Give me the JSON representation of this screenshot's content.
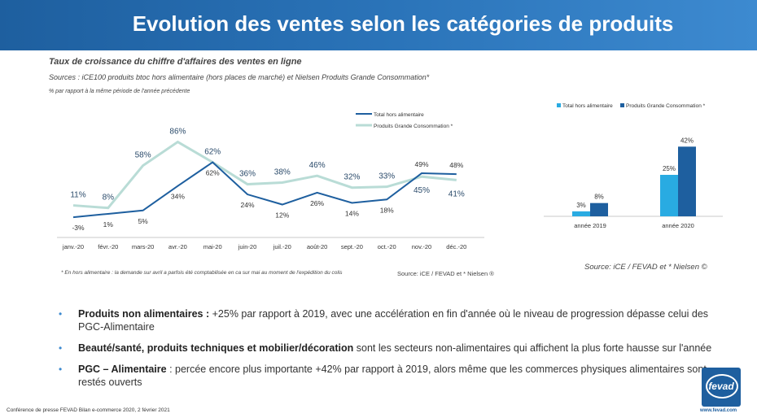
{
  "header": {
    "title": "Evolution des ventes selon les catégories de produits"
  },
  "subtitle": "Taux de croissance du chiffre d'affaires des ventes en ligne",
  "sources": "Sources : iCE100 produits btoc hors alimentaire (hors places de marché) et Nielsen Produits Grande Consommation*",
  "note": "% par rapport à la même période de l'année précédente",
  "footnote": "* En hors alimentaire : la demande sur avril a parfois été comptabilisée en ca sur mai au moment de l'expédition du colis",
  "source2": "Source: iCE / FEVAD et * Nielsen ®",
  "source3": "Source: iCE / FEVAD et * Nielsen ©",
  "colors": {
    "dark": "#1e5f9f",
    "light": "#b9dcd6",
    "bar_light": "#29abe2",
    "bar_dark": "#1e5f9f",
    "bullet": "#3d8ad0"
  },
  "chart_data": [
    {
      "type": "line",
      "categories": [
        "janv.-20",
        "févr.-20",
        "mars-20",
        "avr.-20",
        "mai-20",
        "juin-20",
        "juil.-20",
        "août-20",
        "sept.-20",
        "oct.-20",
        "nov.-20",
        "déc.-20"
      ],
      "series": [
        {
          "name": "Total hors alimentaire",
          "values": [
            -3,
            1,
            5,
            34,
            62,
            24,
            12,
            26,
            14,
            18,
            49,
            48
          ],
          "labels": [
            "-3%",
            "1%",
            "5%",
            "34%",
            "62%",
            "24%",
            "12%",
            "26%",
            "14%",
            "18%",
            "49%",
            "48%"
          ]
        },
        {
          "name": "Produits Grande Consommation *",
          "values": [
            11,
            8,
            58,
            86,
            62,
            36,
            38,
            46,
            32,
            33,
            45,
            41
          ],
          "labels": [
            "11%",
            "8%",
            "58%",
            "86%",
            "62%",
            "36%",
            "38%",
            "46%",
            "32%",
            "33%",
            "45%",
            "41%"
          ]
        }
      ],
      "ylim": [
        -10,
        95
      ]
    },
    {
      "type": "bar",
      "categories": [
        "année 2019",
        "année 2020"
      ],
      "series": [
        {
          "name": "Total hors alimentaire",
          "values": [
            3,
            25
          ],
          "labels": [
            "3%",
            "25%"
          ]
        },
        {
          "name": "Produits Grande Consommation *",
          "values": [
            8,
            42
          ],
          "labels": [
            "8%",
            "42%"
          ]
        }
      ],
      "ylim": [
        0,
        45
      ]
    }
  ],
  "bullets": [
    {
      "bold": "Produits non alimentaires :",
      "text": " +25% par rapport à 2019, avec une accélération en fin d'année où le niveau de progression dépasse celui des PGC-Alimentaire"
    },
    {
      "bold": "Beauté/santé, produits techniques et mobilier/décoration",
      "text": " sont les secteurs non-alimentaires qui affichent la plus forte hausse sur l'année"
    },
    {
      "bold": "PGC – Alimentaire",
      "text": "  : percée encore plus importante +42% par rapport à 2019, alors même que les commerces physiques alimentaires sont restés ouverts"
    }
  ],
  "bullet_glyph": "•",
  "conference": "Conférence de presse FEVAD Bilan e-commerce 2020,  2 février 2021",
  "logo": {
    "name": "fevad",
    "url": "www.fevad.com"
  }
}
